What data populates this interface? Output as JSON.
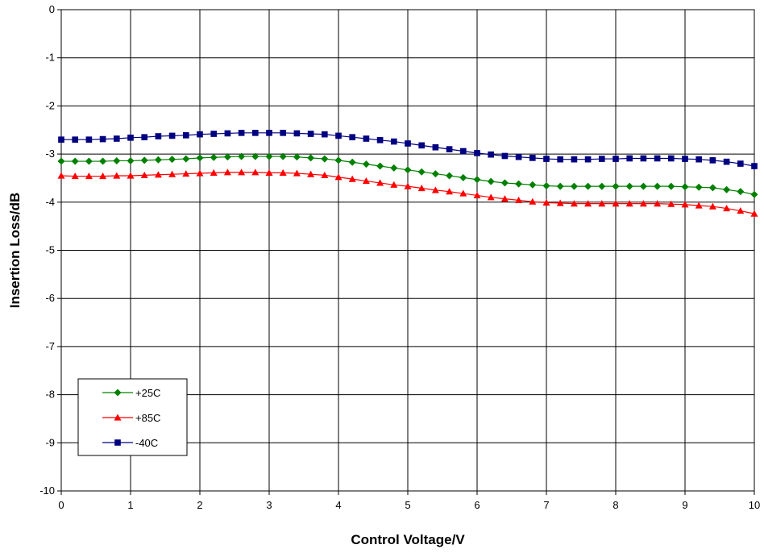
{
  "chart_data": {
    "type": "line",
    "title": "",
    "xlabel": "Control Voltage/V",
    "ylabel": "Insertion Loss/dB",
    "xlim": [
      0,
      10
    ],
    "ylim": [
      -10,
      0
    ],
    "xticks": [
      "0",
      "1",
      "2",
      "3",
      "4",
      "5",
      "6",
      "7",
      "8",
      "9",
      "10"
    ],
    "yticks": [
      "0",
      "-1",
      "-2",
      "-3",
      "-4",
      "-5",
      "-6",
      "-7",
      "-8",
      "-9",
      "-10"
    ],
    "grid": true,
    "legend_position": "bottom-left",
    "x": [
      0,
      0.2,
      0.4,
      0.6,
      0.8,
      1.0,
      1.2,
      1.4,
      1.6,
      1.8,
      2.0,
      2.2,
      2.4,
      2.6,
      2.8,
      3.0,
      3.2,
      3.4,
      3.6,
      3.8,
      4.0,
      4.2,
      4.4,
      4.6,
      4.8,
      5.0,
      5.2,
      5.4,
      5.6,
      5.8,
      6.0,
      6.2,
      6.4,
      6.6,
      6.8,
      7.0,
      7.2,
      7.4,
      7.6,
      7.8,
      8.0,
      8.2,
      8.4,
      8.6,
      8.8,
      9.0,
      9.2,
      9.4,
      9.6,
      9.8,
      10.0
    ],
    "series": [
      {
        "name": "+25C",
        "color": "#008000",
        "marker": "diamond",
        "values": [
          -3.15,
          -3.15,
          -3.15,
          -3.15,
          -3.14,
          -3.14,
          -3.13,
          -3.12,
          -3.11,
          -3.1,
          -3.08,
          -3.07,
          -3.06,
          -3.05,
          -3.05,
          -3.05,
          -3.05,
          -3.06,
          -3.08,
          -3.1,
          -3.13,
          -3.17,
          -3.21,
          -3.25,
          -3.29,
          -3.33,
          -3.37,
          -3.41,
          -3.45,
          -3.49,
          -3.53,
          -3.57,
          -3.6,
          -3.62,
          -3.64,
          -3.66,
          -3.67,
          -3.67,
          -3.67,
          -3.67,
          -3.67,
          -3.67,
          -3.67,
          -3.67,
          -3.67,
          -3.68,
          -3.69,
          -3.7,
          -3.74,
          -3.78,
          -3.84
        ]
      },
      {
        "name": "+85C",
        "color": "#ff0000",
        "marker": "triangle",
        "values": [
          -3.45,
          -3.46,
          -3.46,
          -3.46,
          -3.45,
          -3.45,
          -3.44,
          -3.43,
          -3.42,
          -3.41,
          -3.4,
          -3.39,
          -3.38,
          -3.38,
          -3.38,
          -3.39,
          -3.39,
          -3.4,
          -3.42,
          -3.44,
          -3.48,
          -3.52,
          -3.56,
          -3.6,
          -3.64,
          -3.67,
          -3.71,
          -3.75,
          -3.78,
          -3.82,
          -3.86,
          -3.9,
          -3.93,
          -3.96,
          -3.99,
          -4.01,
          -4.02,
          -4.03,
          -4.03,
          -4.03,
          -4.03,
          -4.03,
          -4.03,
          -4.03,
          -4.04,
          -4.05,
          -4.07,
          -4.09,
          -4.13,
          -4.18,
          -4.24
        ]
      },
      {
        "name": "-40C",
        "color": "#000080",
        "marker": "square",
        "values": [
          -2.7,
          -2.7,
          -2.7,
          -2.69,
          -2.68,
          -2.66,
          -2.65,
          -2.63,
          -2.62,
          -2.61,
          -2.59,
          -2.58,
          -2.57,
          -2.56,
          -2.56,
          -2.56,
          -2.56,
          -2.57,
          -2.58,
          -2.59,
          -2.62,
          -2.65,
          -2.68,
          -2.71,
          -2.74,
          -2.78,
          -2.82,
          -2.86,
          -2.9,
          -2.94,
          -2.98,
          -3.01,
          -3.04,
          -3.06,
          -3.08,
          -3.1,
          -3.11,
          -3.11,
          -3.11,
          -3.1,
          -3.1,
          -3.09,
          -3.09,
          -3.09,
          -3.09,
          -3.1,
          -3.11,
          -3.13,
          -3.16,
          -3.2,
          -3.25
        ]
      }
    ]
  }
}
